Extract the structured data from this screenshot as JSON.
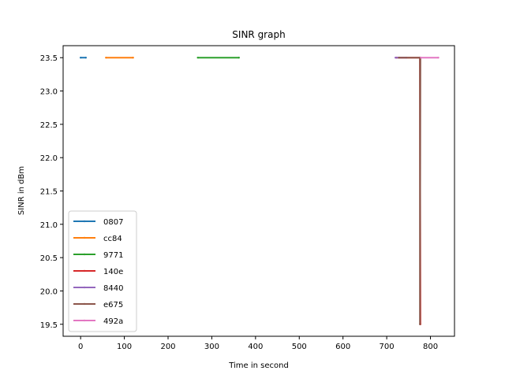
{
  "chart_data": {
    "type": "line",
    "title": "SINR graph",
    "xlabel": "Time in second",
    "ylabel": "SINR in dBm",
    "xlim": [
      -40,
      855
    ],
    "ylim": [
      19.32,
      23.68
    ],
    "xticks": [
      0,
      100,
      200,
      300,
      400,
      500,
      600,
      700,
      800
    ],
    "yticks": [
      19.5,
      20.0,
      20.5,
      21.0,
      21.5,
      22.0,
      22.5,
      23.0,
      23.5
    ],
    "ytick_labels": [
      "19.5",
      "20.0",
      "20.5",
      "21.0",
      "21.5",
      "22.0",
      "22.5",
      "23.0",
      "23.5"
    ],
    "grid": false,
    "legend": "lower-left",
    "series": [
      {
        "name": "0807",
        "color": "#1f77b4",
        "x": [
          0,
          12
        ],
        "y": [
          23.5,
          23.5
        ]
      },
      {
        "name": "cc84",
        "color": "#ff7f0e",
        "x": [
          58,
          120
        ],
        "y": [
          23.5,
          23.5
        ]
      },
      {
        "name": "9771",
        "color": "#2ca02c",
        "x": [
          268,
          362
        ],
        "y": [
          23.5,
          23.5
        ]
      },
      {
        "name": "140e",
        "color": "#d62728",
        "x": [
          722,
          776,
          777
        ],
        "y": [
          23.5,
          23.5,
          19.5
        ]
      },
      {
        "name": "8440",
        "color": "#9467bd",
        "x": [
          720,
          745
        ],
        "y": [
          23.5,
          23.5
        ]
      },
      {
        "name": "e675",
        "color": "#8c564b",
        "x": [
          728,
          776,
          776,
          777
        ],
        "y": [
          23.5,
          23.5,
          19.5,
          23.5
        ]
      },
      {
        "name": "492a",
        "color": "#e377c2",
        "x": [
          778,
          818
        ],
        "y": [
          23.5,
          23.5
        ]
      }
    ]
  }
}
